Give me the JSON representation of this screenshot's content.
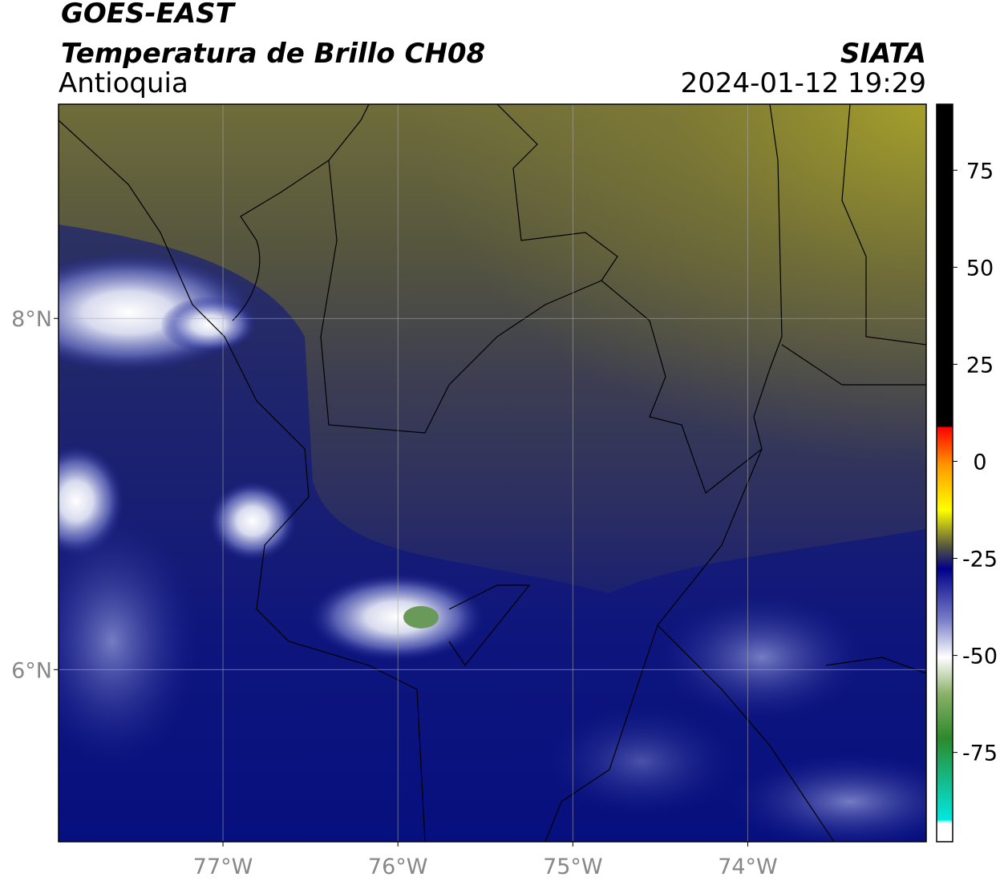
{
  "header": {
    "title": "GOES-EAST",
    "subtitle": "Temperatura de Brillo CH08",
    "region": "Antioquia",
    "source": "SIATA",
    "timestamp": "2024-01-12 19:29"
  },
  "map": {
    "xlim": [
      -77.94,
      -72.98
    ],
    "ylim": [
      5.02,
      9.22
    ],
    "xticks": [
      {
        "value": -77,
        "label": "77°W"
      },
      {
        "value": -76,
        "label": "76°W"
      },
      {
        "value": -75,
        "label": "75°W"
      },
      {
        "value": -74,
        "label": "74°W"
      }
    ],
    "yticks": [
      {
        "value": 8,
        "label": "8°N"
      },
      {
        "value": 6,
        "label": "6°N"
      }
    ],
    "grid": true
  },
  "colorbar": {
    "clim": [
      -98,
      92
    ],
    "ticks": [
      75,
      50,
      25,
      0,
      -25,
      -50,
      -75
    ]
  }
}
